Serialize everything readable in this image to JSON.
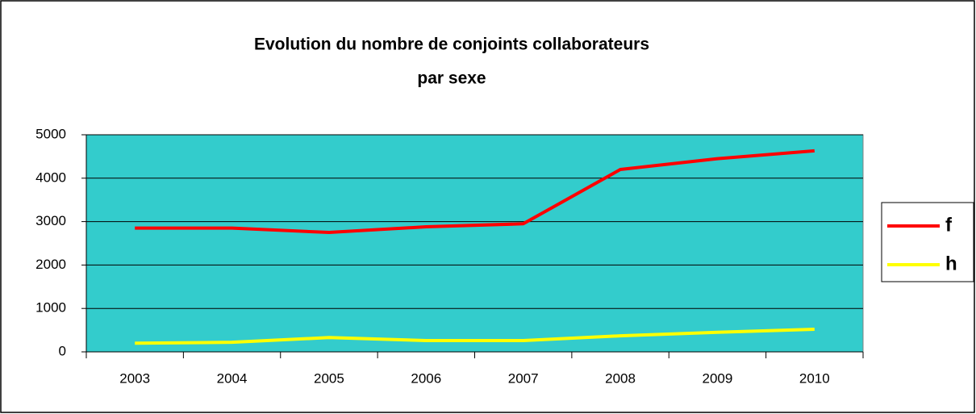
{
  "chart_data": {
    "type": "line",
    "title": [
      "Evolution du nombre de conjoints collaborateurs",
      "par sexe"
    ],
    "categories": [
      "2003",
      "2004",
      "2005",
      "2006",
      "2007",
      "2008",
      "2009",
      "2010"
    ],
    "series": [
      {
        "name": "f",
        "color": "#ff0000",
        "values": [
          2850,
          2850,
          2750,
          2880,
          2950,
          4200,
          4450,
          4630
        ]
      },
      {
        "name": "h",
        "color": "#ffff00",
        "values": [
          200,
          220,
          330,
          260,
          260,
          370,
          450,
          520
        ]
      }
    ],
    "ylim": [
      0,
      5000
    ],
    "yticks": [
      0,
      1000,
      2000,
      3000,
      4000,
      5000
    ],
    "grid": true,
    "background": "#33cccc",
    "legend": "right"
  }
}
